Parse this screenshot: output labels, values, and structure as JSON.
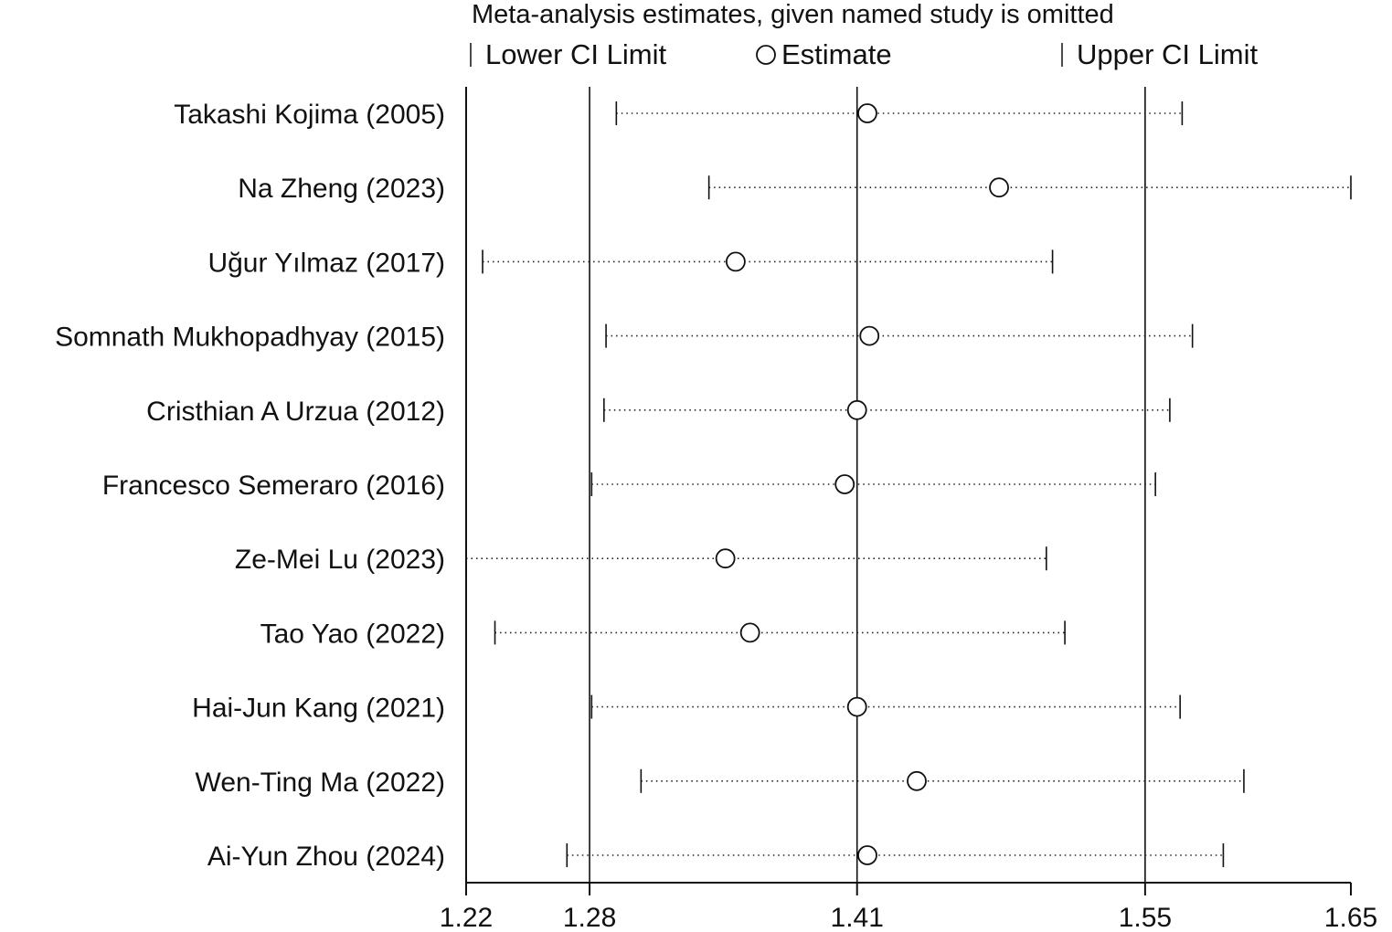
{
  "chart_data": {
    "type": "forest",
    "title": "Meta-analysis estimates, given named study is omitted",
    "legend": {
      "lower": "Lower CI Limit",
      "estimate": "Estimate",
      "upper": "Upper CI Limit"
    },
    "x_ticks": [
      {
        "value": 1.22,
        "label": "1.22"
      },
      {
        "value": 1.28,
        "label": "1.28"
      },
      {
        "value": 1.41,
        "label": "1.41"
      },
      {
        "value": 1.55,
        "label": "1.55"
      },
      {
        "value": 1.65,
        "label": "1.65"
      }
    ],
    "reference_lines": [
      1.28,
      1.41,
      1.55
    ],
    "xlim": [
      1.22,
      1.65
    ],
    "studies": [
      {
        "name": "Takashi Kojima (2005)",
        "lower": 1.293,
        "estimate": 1.415,
        "upper": 1.568
      },
      {
        "name": "Na Zheng (2023)",
        "lower": 1.338,
        "estimate": 1.479,
        "upper": 1.65
      },
      {
        "name": "Uğur Yılmaz (2017)",
        "lower": 1.228,
        "estimate": 1.351,
        "upper": 1.505
      },
      {
        "name": "Somnath Mukhopadhyay (2015)",
        "lower": 1.288,
        "estimate": 1.416,
        "upper": 1.573
      },
      {
        "name": "Cristhian A Urzua (2012)",
        "lower": 1.287,
        "estimate": 1.41,
        "upper": 1.562
      },
      {
        "name": "Francesco Semeraro (2016)",
        "lower": 1.281,
        "estimate": 1.404,
        "upper": 1.555
      },
      {
        "name": "Ze-Mei Lu (2023)",
        "lower": 1.22,
        "estimate": 1.346,
        "upper": 1.502
      },
      {
        "name": "Tao Yao (2022)",
        "lower": 1.234,
        "estimate": 1.358,
        "upper": 1.511
      },
      {
        "name": "Hai-Jun Kang (2021)",
        "lower": 1.281,
        "estimate": 1.41,
        "upper": 1.567
      },
      {
        "name": "Wen-Ting Ma (2022)",
        "lower": 1.305,
        "estimate": 1.439,
        "upper": 1.598
      },
      {
        "name": "Ai-Yun Zhou (2024)",
        "lower": 1.269,
        "estimate": 1.415,
        "upper": 1.588
      }
    ]
  }
}
